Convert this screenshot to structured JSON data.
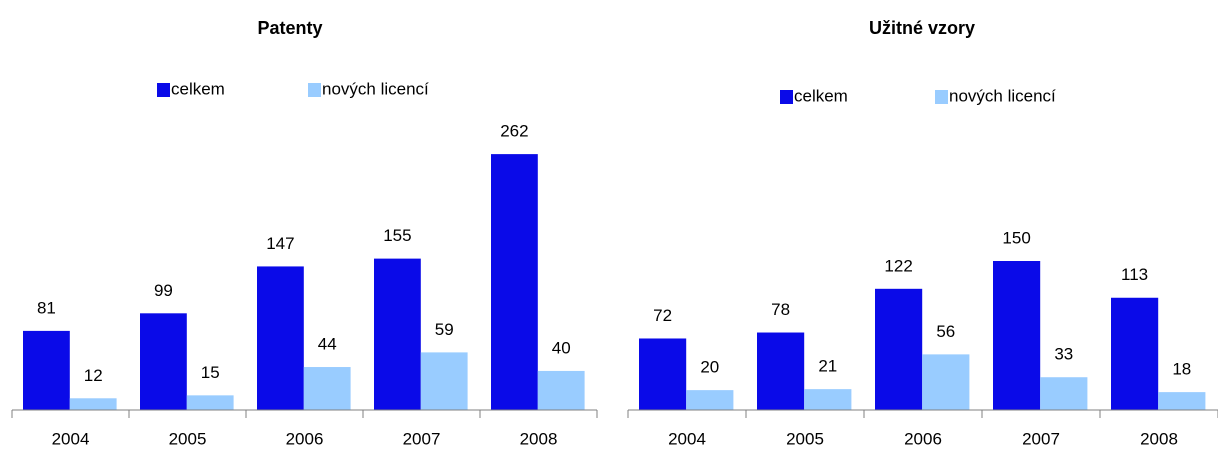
{
  "chart_data": [
    {
      "type": "bar",
      "title": "Patenty",
      "categories": [
        "2004",
        "2005",
        "2006",
        "2007",
        "2008"
      ],
      "series": [
        {
          "name": "celkem",
          "color": "#0a0ae8",
          "values": [
            81,
            99,
            147,
            155,
            262
          ]
        },
        {
          "name": "nových licencí",
          "color": "#99ccff",
          "values": [
            12,
            15,
            44,
            59,
            40
          ]
        }
      ],
      "ylim": [
        0,
        300
      ]
    },
    {
      "type": "bar",
      "title": "Užitné vzory",
      "categories": [
        "2004",
        "2005",
        "2006",
        "2007",
        "2008"
      ],
      "series": [
        {
          "name": "celkem",
          "color": "#0a0ae8",
          "values": [
            72,
            78,
            122,
            150,
            113
          ]
        },
        {
          "name": "nových licencí",
          "color": "#99ccff",
          "values": [
            20,
            21,
            56,
            33,
            18
          ]
        }
      ],
      "ylim": [
        0,
        300
      ]
    }
  ]
}
